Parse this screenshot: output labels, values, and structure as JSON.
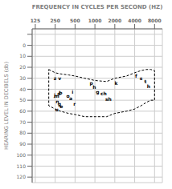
{
  "chart_data": {
    "type": "line",
    "x_label": "FREQUENCY IN CYCLES PER SECOND  (HZ)",
    "y_label": "HEARING LEVEL IN DECIBELS (db)",
    "log": "x",
    "grid": true,
    "xlim": [
      112,
      10500
    ],
    "ylim": [
      125,
      -15
    ],
    "xticks": [
      125,
      250,
      500,
      1000,
      2000,
      4000,
      8000
    ],
    "yticks": [
      {
        "value": -10,
        "label": ""
      },
      0,
      10,
      20,
      30,
      40,
      50,
      60,
      70,
      80,
      90,
      100,
      110,
      120
    ],
    "series": [
      {
        "x": [
          200,
          250,
          300,
          400,
          500,
          700,
          1000,
          1500,
          2000,
          3000,
          4000,
          5000,
          6000,
          7000,
          8000
        ],
        "values": [
          22,
          25,
          26,
          27,
          28,
          30,
          32,
          33,
          30,
          28,
          25,
          23,
          22,
          22,
          23
        ],
        "color": "#000000",
        "line_style": "dashed"
      },
      {
        "x": [
          200,
          250,
          300,
          400,
          500,
          700,
          1000,
          1500,
          2000,
          3000,
          4000,
          5000,
          6000,
          7000,
          8000
        ],
        "values": [
          55,
          58,
          60,
          62,
          63,
          65,
          65,
          65,
          62,
          60,
          58,
          55,
          52,
          50,
          50
        ],
        "color": "#000000",
        "line_style": "dashed"
      }
    ],
    "annotations": [
      {
        "text": "z v",
        "x": 270,
        "y": 30
      },
      {
        "text": "j",
        "x": 245,
        "y": 45
      },
      {
        "text": "m",
        "x": 265,
        "y": 46
      },
      {
        "text": "d",
        "x": 285,
        "y": 44
      },
      {
        "text": "b",
        "x": 302,
        "y": 43
      },
      {
        "text": "n",
        "x": 270,
        "y": 51
      },
      {
        "text": "g",
        "x": 290,
        "y": 53
      },
      {
        "text": "e",
        "x": 310,
        "y": 55
      },
      {
        "text": "u",
        "x": 265,
        "y": 58
      },
      {
        "text": "o",
        "x": 390,
        "y": 46
      },
      {
        "text": "a",
        "x": 430,
        "y": 48
      },
      {
        "text": "i",
        "x": 460,
        "y": 42
      },
      {
        "text": "r",
        "x": 490,
        "y": 53
      },
      {
        "text": "p",
        "x": 880,
        "y": 34
      },
      {
        "text": "h",
        "x": 980,
        "y": 38
      },
      {
        "text": "g",
        "x": 1100,
        "y": 42
      },
      {
        "text": "ch",
        "x": 1350,
        "y": 44
      },
      {
        "text": "sh",
        "x": 1600,
        "y": 49
      },
      {
        "text": "k",
        "x": 2100,
        "y": 34
      },
      {
        "text": "f",
        "x": 4200,
        "y": 28
      },
      {
        "text": "s",
        "x": 5000,
        "y": 30
      },
      {
        "text": "t",
        "x": 5800,
        "y": 33
      },
      {
        "text": "h",
        "x": 6500,
        "y": 37
      }
    ]
  }
}
